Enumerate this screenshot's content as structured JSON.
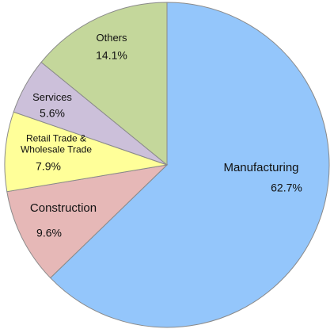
{
  "chart_data": {
    "type": "pie",
    "categories": [
      "Manufacturing",
      "Construction",
      "Retail Trade & Wholesale Trade",
      "Services",
      "Others"
    ],
    "values": [
      62.7,
      9.6,
      7.9,
      5.6,
      14.1
    ],
    "value_labels": [
      "62.7%",
      "9.6%",
      "7.9%",
      "5.6%",
      "14.1%"
    ],
    "colors": [
      "#94c6fb",
      "#e6b8b7",
      "#ffff99",
      "#ccc0da",
      "#c4d79b"
    ]
  }
}
